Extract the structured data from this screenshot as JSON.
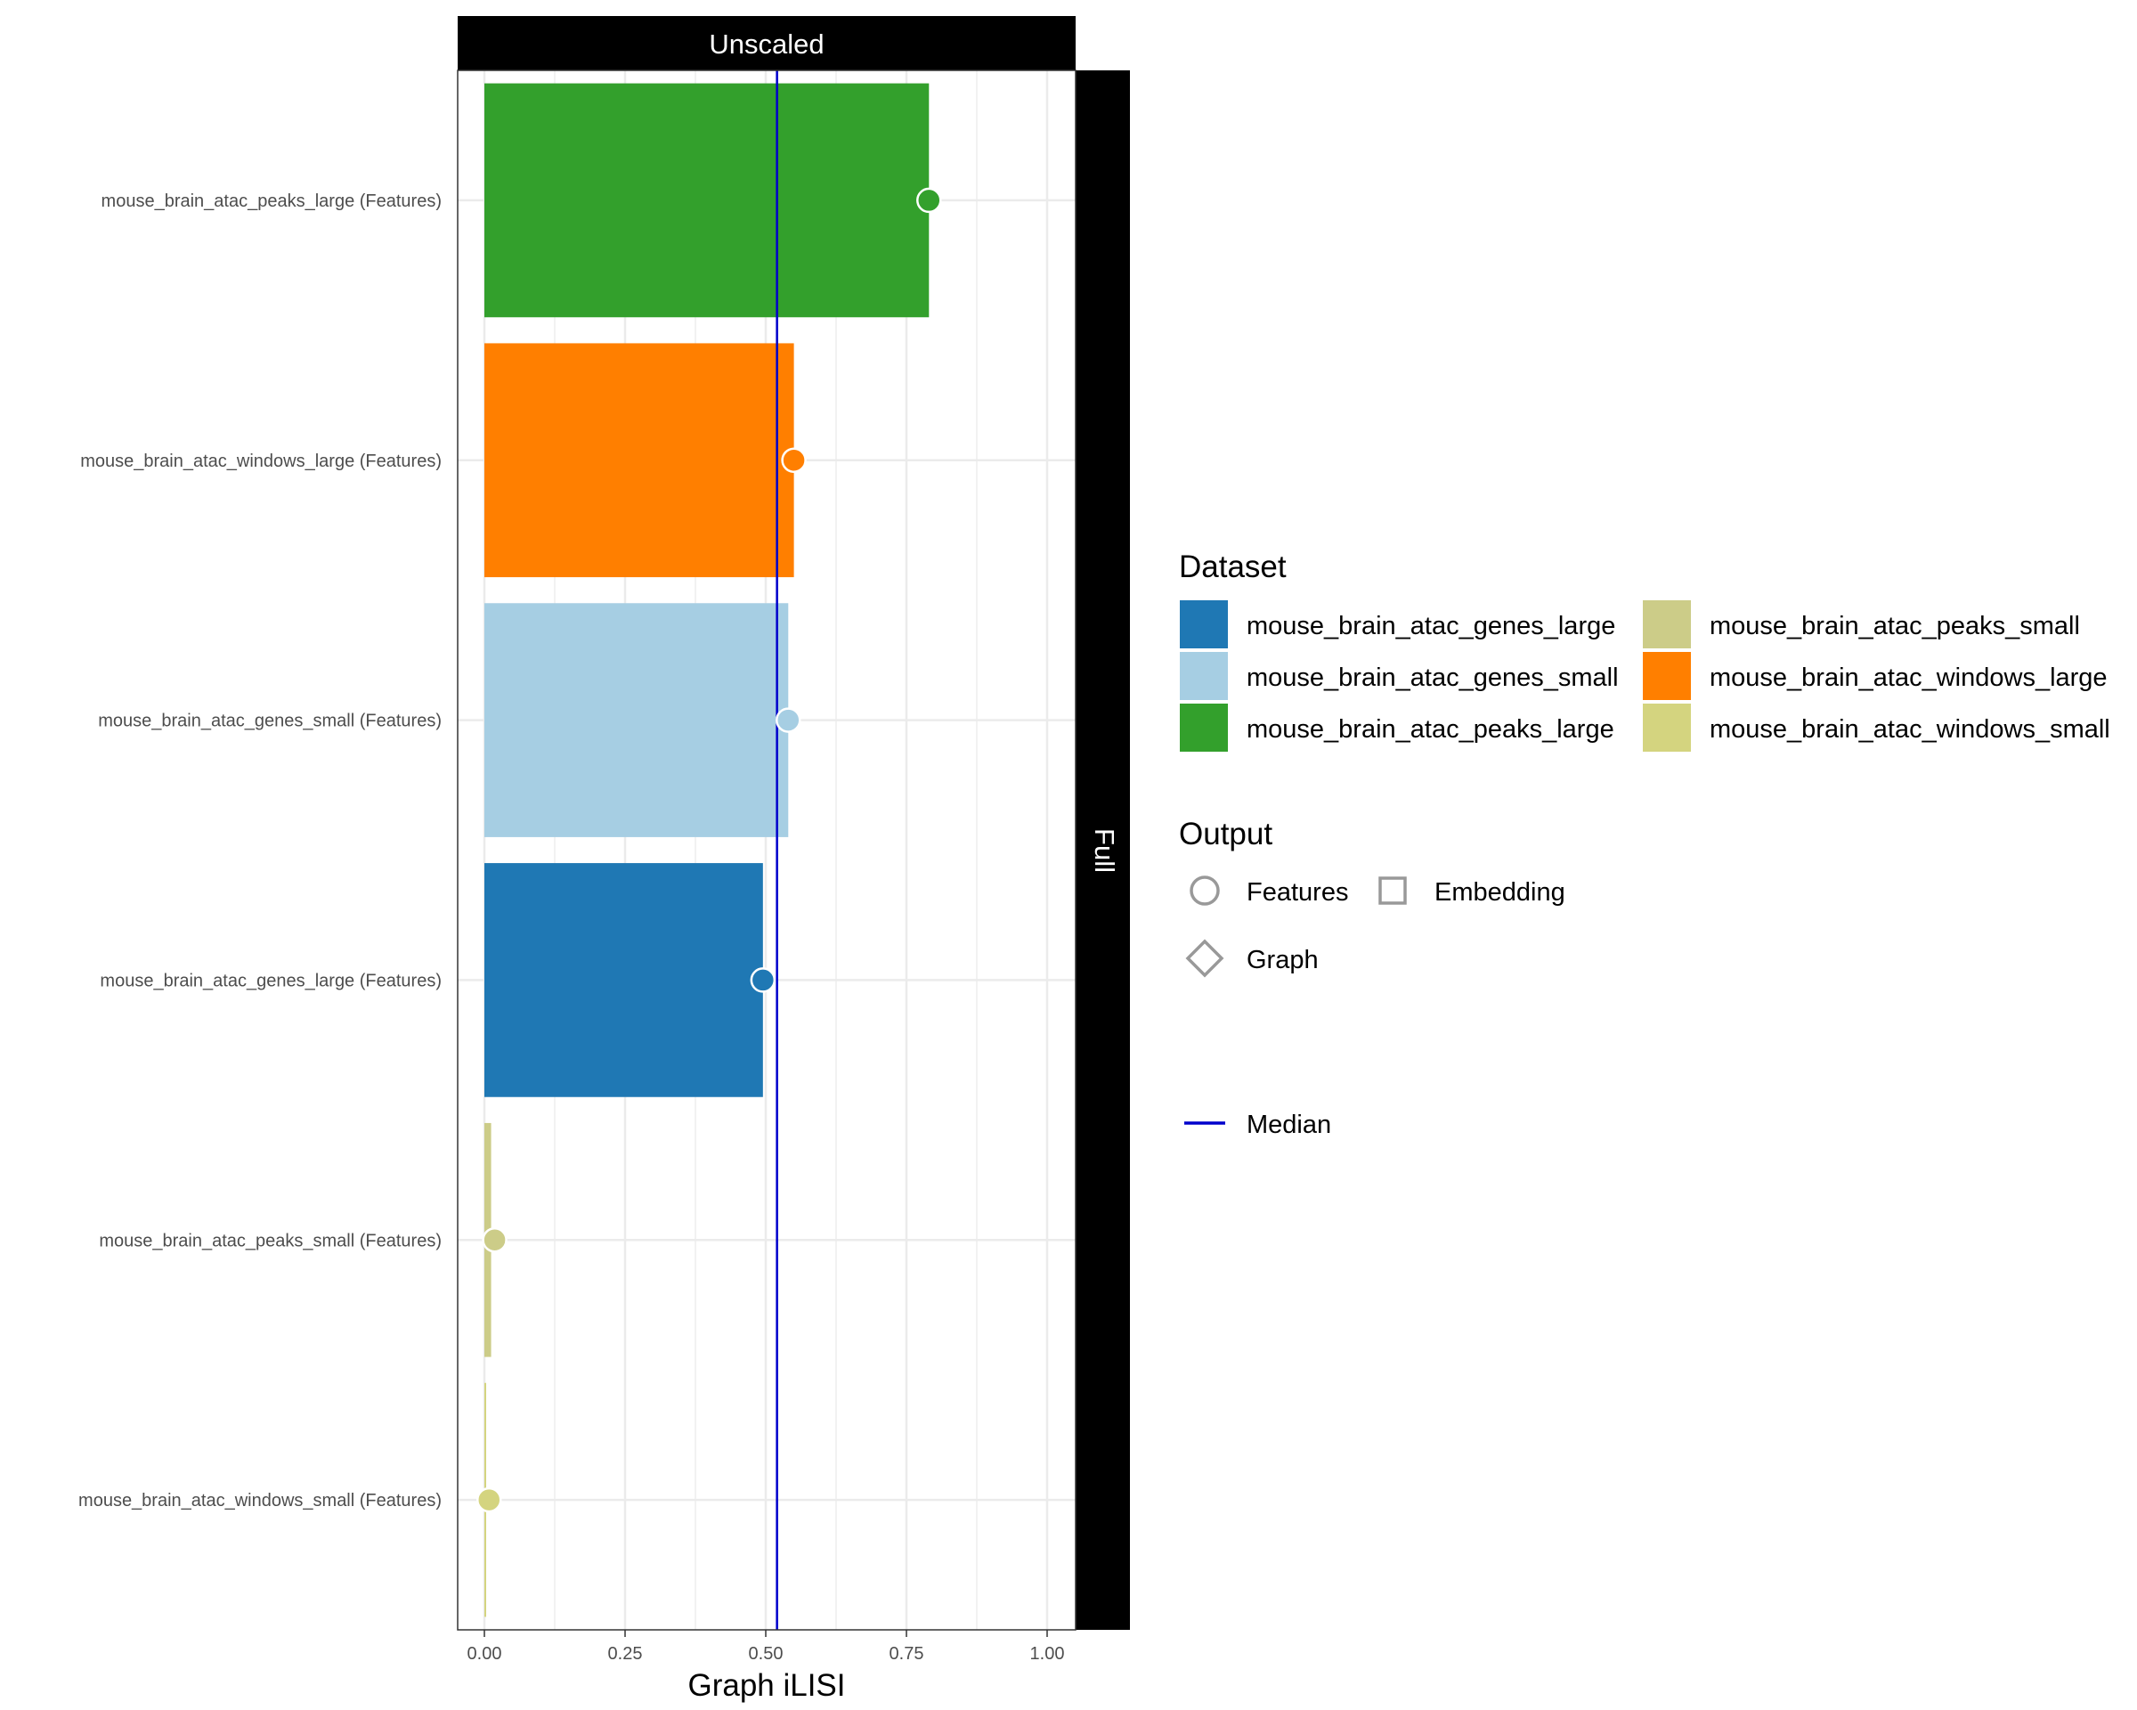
{
  "chart_data": {
    "type": "bar",
    "facet_top_label": "Unscaled",
    "facet_right_label": "Full",
    "xlabel": "Graph iLISI",
    "ylabel": "",
    "xlim": [
      -0.05,
      1.05
    ],
    "x_ticks": [
      0.0,
      0.25,
      0.5,
      0.75,
      1.0
    ],
    "x_tick_labels": [
      "0.00",
      "0.25",
      "0.50",
      "0.75",
      "1.00"
    ],
    "median": 0.52,
    "grid": true,
    "categories": [
      "mouse_brain_atac_peaks_large (Features)",
      "mouse_brain_atac_windows_large (Features)",
      "mouse_brain_atac_genes_small (Features)",
      "mouse_brain_atac_genes_large (Features)",
      "mouse_brain_atac_peaks_small (Features)",
      "mouse_brain_atac_windows_small (Features)"
    ],
    "values": [
      0.79,
      0.55,
      0.54,
      0.495,
      0.012,
      0.002
    ],
    "bar_colors": [
      "#33a02c",
      "#ff7f00",
      "#a6cee3",
      "#1f78b4",
      "#cccc88",
      "#d4d47f"
    ],
    "legend": {
      "placement": "right",
      "dataset_title": "Dataset",
      "datasets": [
        {
          "label": "mouse_brain_atac_genes_large",
          "color": "#1f78b4"
        },
        {
          "label": "mouse_brain_atac_genes_small",
          "color": "#a6cee3"
        },
        {
          "label": "mouse_brain_atac_peaks_large",
          "color": "#33a02c"
        },
        {
          "label": "mouse_brain_atac_peaks_small",
          "color": "#cccc88"
        },
        {
          "label": "mouse_brain_atac_windows_large",
          "color": "#ff7f00"
        },
        {
          "label": "mouse_brain_atac_windows_small",
          "color": "#d4d47f"
        }
      ],
      "output_title": "Output",
      "outputs": [
        {
          "label": "Features",
          "shape": "circle"
        },
        {
          "label": "Embedding",
          "shape": "square"
        },
        {
          "label": "Graph",
          "shape": "diamond"
        }
      ],
      "median_label": "Median",
      "median_color": "#0000cc"
    }
  }
}
